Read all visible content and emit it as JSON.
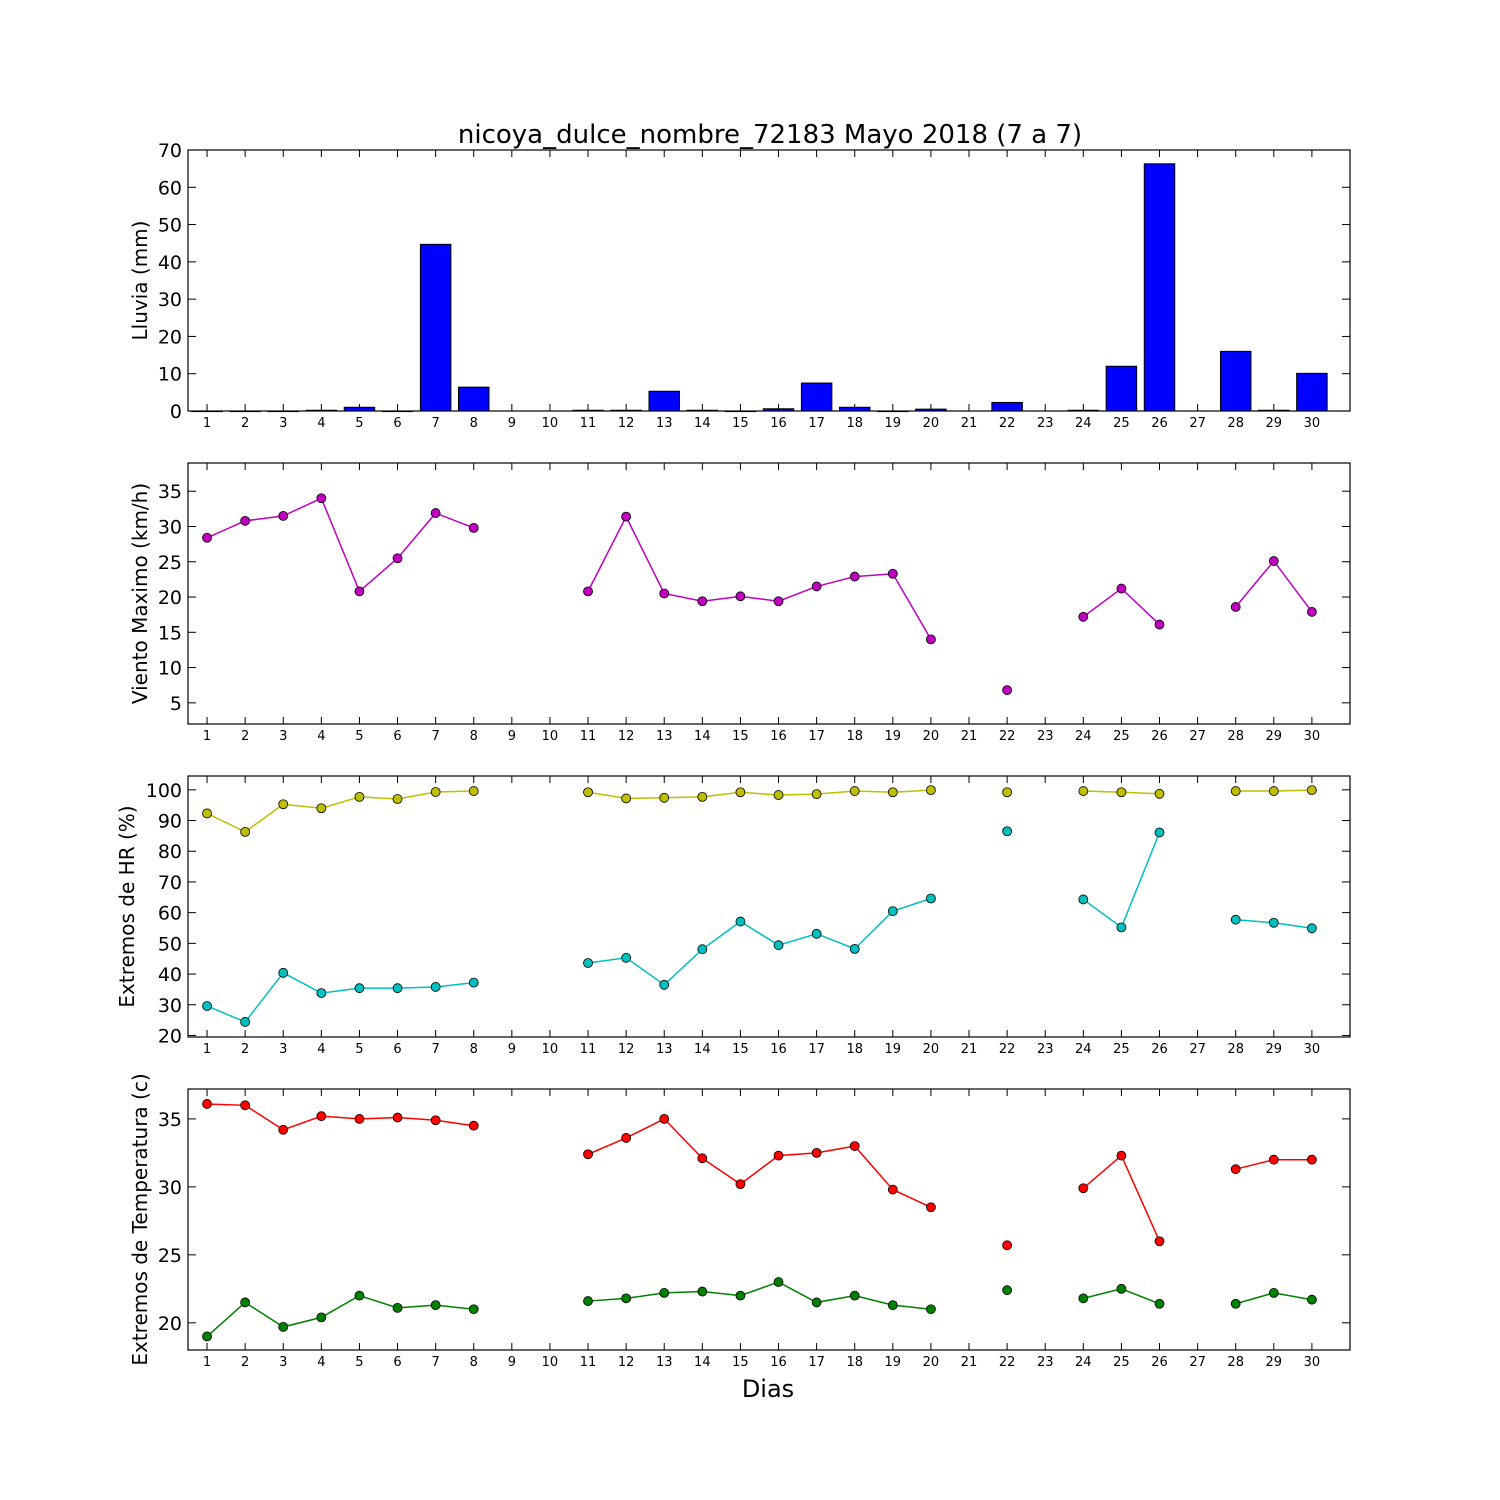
{
  "title": "nicoya_dulce_nombre_72183 Mayo 2018  (7 a 7)",
  "xlabel": "Dias",
  "chart_data": [
    {
      "type": "bar",
      "ylabel": "Lluvia (mm)",
      "ylim": [
        0,
        70
      ],
      "yticks": [
        0,
        10,
        20,
        30,
        40,
        50,
        60,
        70
      ],
      "x_ticks": [
        "1",
        "2",
        "3",
        "4",
        "5",
        "6",
        "7",
        "8",
        "9",
        "10",
        "11",
        "12",
        "13",
        "14",
        "15",
        "16",
        "17",
        "18",
        "19",
        "20",
        "21",
        "22",
        "23",
        "24",
        "25",
        "26",
        "27",
        "28",
        "29",
        "30"
      ],
      "bar_color": "#0000ff",
      "series": [
        {
          "values": [
            0,
            0,
            0,
            0.2,
            1.0,
            0,
            44.7,
            6.4,
            null,
            null,
            0.2,
            0.2,
            5.3,
            0.2,
            0,
            0.6,
            7.5,
            1.0,
            0,
            0.5,
            null,
            2.3,
            null,
            0.2,
            12.0,
            66.3,
            null,
            16.0,
            0.2,
            10.1
          ]
        }
      ]
    },
    {
      "type": "line",
      "ylabel": "Viento Maximo (km/h)",
      "ylim": [
        2,
        39
      ],
      "yticks": [
        5,
        10,
        15,
        20,
        25,
        30,
        35
      ],
      "x_ticks": [
        "1",
        "2",
        "3",
        "4",
        "5",
        "6",
        "7",
        "8",
        "9",
        "10",
        "11",
        "12",
        "13",
        "14",
        "15",
        "16",
        "17",
        "18",
        "19",
        "20",
        "21",
        "22",
        "23",
        "24",
        "25",
        "26",
        "27",
        "28",
        "29",
        "30"
      ],
      "series": [
        {
          "color": "#bf00bf",
          "values": [
            28.4,
            30.8,
            31.5,
            34.0,
            20.8,
            25.5,
            31.9,
            29.8,
            null,
            null,
            20.8,
            31.4,
            20.5,
            19.4,
            20.1,
            19.4,
            21.5,
            22.9,
            23.3,
            14.0,
            null,
            6.8,
            null,
            17.2,
            21.2,
            16.1,
            null,
            18.6,
            25.1,
            17.9
          ]
        }
      ]
    },
    {
      "type": "line",
      "ylabel": "Extremos de HR (%)",
      "ylim": [
        19.5,
        104.5
      ],
      "yticks": [
        20,
        30,
        40,
        50,
        60,
        70,
        80,
        90,
        100
      ],
      "x_ticks": [
        "1",
        "2",
        "3",
        "4",
        "5",
        "6",
        "7",
        "8",
        "9",
        "10",
        "11",
        "12",
        "13",
        "14",
        "15",
        "16",
        "17",
        "18",
        "19",
        "20",
        "21",
        "22",
        "23",
        "24",
        "25",
        "26",
        "27",
        "28",
        "29",
        "30"
      ],
      "series": [
        {
          "color": "#bfbf00",
          "values": [
            92.3,
            86.3,
            95.3,
            94.0,
            97.7,
            97.0,
            99.3,
            99.6,
            null,
            null,
            99.2,
            97.2,
            97.4,
            97.7,
            99.2,
            98.3,
            98.6,
            99.6,
            99.2,
            99.9,
            null,
            99.2,
            null,
            99.6,
            99.2,
            98.7,
            null,
            99.6,
            99.6,
            99.9
          ]
        },
        {
          "color": "#00bfbf",
          "values": [
            29.6,
            24.4,
            40.4,
            33.8,
            35.4,
            35.4,
            35.8,
            37.2,
            null,
            null,
            43.6,
            45.3,
            36.5,
            48.1,
            57.1,
            49.4,
            53.1,
            48.2,
            60.5,
            64.6,
            null,
            86.5,
            null,
            64.3,
            55.2,
            86.1,
            null,
            57.7,
            56.7,
            54.9
          ]
        }
      ]
    },
    {
      "type": "line",
      "ylabel": "Extremos de Temperatura (c)",
      "ylim": [
        18,
        37.2
      ],
      "yticks": [
        20,
        25,
        30,
        35
      ],
      "x_ticks": [
        "1",
        "2",
        "3",
        "4",
        "5",
        "6",
        "7",
        "8",
        "9",
        "10",
        "11",
        "12",
        "13",
        "14",
        "15",
        "16",
        "17",
        "18",
        "19",
        "20",
        "21",
        "22",
        "23",
        "24",
        "25",
        "26",
        "27",
        "28",
        "29",
        "30"
      ],
      "series": [
        {
          "color": "#ff0000",
          "values": [
            36.1,
            36.0,
            34.2,
            35.2,
            35.0,
            35.1,
            34.9,
            34.5,
            null,
            null,
            32.4,
            33.6,
            35.0,
            32.1,
            30.2,
            32.3,
            32.5,
            33.0,
            29.8,
            28.5,
            null,
            25.7,
            null,
            29.9,
            32.3,
            26.0,
            null,
            31.3,
            32.0,
            32.0
          ]
        },
        {
          "color": "#008000",
          "values": [
            19.0,
            21.5,
            19.7,
            20.4,
            22.0,
            21.1,
            21.3,
            21.0,
            null,
            null,
            21.6,
            21.8,
            22.2,
            22.3,
            22.0,
            23.0,
            21.5,
            22.0,
            21.3,
            21.0,
            null,
            22.4,
            null,
            21.8,
            22.5,
            21.4,
            null,
            21.4,
            22.2,
            21.7
          ]
        }
      ]
    }
  ]
}
